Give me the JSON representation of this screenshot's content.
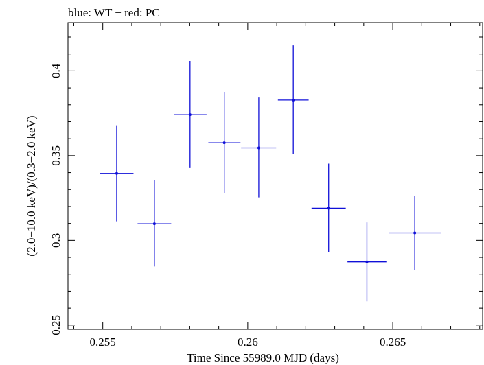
{
  "chart_data": {
    "type": "scatter",
    "title": "blue: WT − red: PC",
    "xlabel": "Time Since 55989.0 MJD (days)",
    "ylabel": "(2.0−10.0 keV)/(0.3−2.0 keV)",
    "xlim": [
      0.2538,
      0.2681
    ],
    "ylim": [
      0.2475,
      0.4285
    ],
    "x_ticks": [
      {
        "value": 0.255,
        "label": "0.255"
      },
      {
        "value": 0.26,
        "label": "0.26"
      },
      {
        "value": 0.265,
        "label": "0.265"
      }
    ],
    "y_ticks": [
      {
        "value": 0.25,
        "label": "0.25"
      },
      {
        "value": 0.3,
        "label": "0.3"
      },
      {
        "value": 0.35,
        "label": "0.35"
      },
      {
        "value": 0.4,
        "label": "0.4"
      }
    ],
    "series": [
      {
        "color": "#1010d8",
        "points": [
          {
            "x": 0.25548,
            "xerr": [
              0.25491,
              0.25606
            ],
            "y": 0.3395,
            "yerr": [
              0.3112,
              0.3679
            ]
          },
          {
            "x": 0.25678,
            "xerr": [
              0.2562,
              0.25736
            ],
            "y": 0.3098,
            "yerr": [
              0.2846,
              0.3355
            ]
          },
          {
            "x": 0.25801,
            "xerr": [
              0.25745,
              0.25858
            ],
            "y": 0.3742,
            "yerr": [
              0.3427,
              0.4058
            ]
          },
          {
            "x": 0.25919,
            "xerr": [
              0.25864,
              0.25975
            ],
            "y": 0.3576,
            "yerr": [
              0.3279,
              0.3876
            ]
          },
          {
            "x": 0.26038,
            "xerr": [
              0.25977,
              0.26098
            ],
            "y": 0.3546,
            "yerr": [
              0.3254,
              0.3843
            ]
          },
          {
            "x": 0.26157,
            "xerr": [
              0.26104,
              0.2621
            ],
            "y": 0.3828,
            "yerr": [
              0.351,
              0.4151
            ]
          },
          {
            "x": 0.26279,
            "xerr": [
              0.2622,
              0.26338
            ],
            "y": 0.319,
            "yerr": [
              0.293,
              0.3453
            ]
          },
          {
            "x": 0.26411,
            "xerr": [
              0.26344,
              0.26478
            ],
            "y": 0.2873,
            "yerr": [
              0.264,
              0.3106
            ]
          },
          {
            "x": 0.26576,
            "xerr": [
              0.26487,
              0.26666
            ],
            "y": 0.3044,
            "yerr": [
              0.2826,
              0.3261
            ]
          }
        ]
      }
    ]
  }
}
